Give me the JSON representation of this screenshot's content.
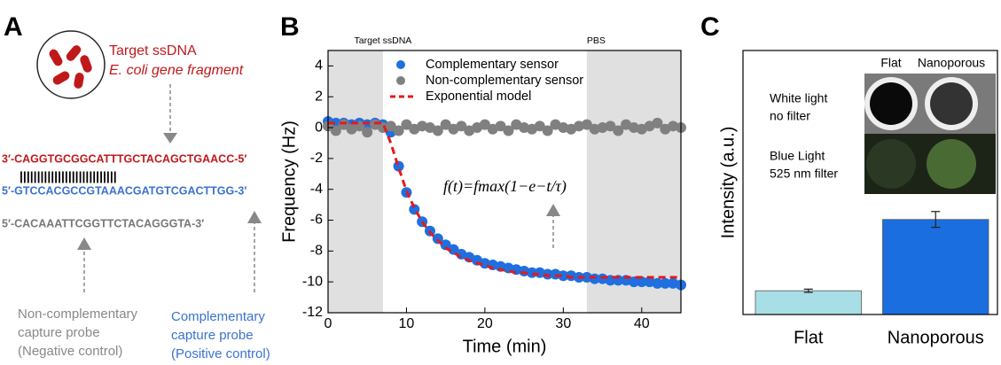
{
  "panel_a": {
    "label": "A",
    "target_title": "Target ssDNA",
    "target_sub": "E. coli gene fragment",
    "seq_target": "3′-CAGGTGCGGCATTTGCTACAGCTGAACC-5′",
    "pairs": "||||||||||||||||||||||||||||",
    "seq_comp": "5′-GTCCACGCCGTAAACGATGTCGACTTGG-3′",
    "seq_noncomp": "5′-CACAAATTCGGTTCTACAGGGTA-3′",
    "noncomp_label": [
      "Non-complementary",
      "capture probe",
      "(Negative control)"
    ],
    "comp_label": [
      "Complementary",
      "capture probe",
      "(Positive control)"
    ]
  },
  "chart_data": [
    {
      "type": "line",
      "panel": "B",
      "xlabel": "Time (min)",
      "ylabel": "Frequency (Hz)",
      "xlim": [
        0,
        45
      ],
      "xticks": [
        0,
        10,
        20,
        30,
        40
      ],
      "ylim": [
        -12,
        5
      ],
      "yticks": [
        -12,
        -10,
        -8,
        -6,
        -4,
        -2,
        0,
        2,
        4
      ],
      "shaded": [
        [
          0,
          7
        ],
        [
          33,
          45
        ]
      ],
      "annotations": [
        {
          "text": "Target ssDNA",
          "x": 7
        },
        {
          "text": "PBS",
          "x": 33
        }
      ],
      "formula": "f(t)=fmax(1−e−t/τ)",
      "x": [
        0,
        1,
        2,
        3,
        4,
        5,
        6,
        7,
        8,
        9,
        10,
        11,
        12,
        13,
        14,
        15,
        16,
        17,
        18,
        19,
        20,
        21,
        22,
        23,
        24,
        25,
        26,
        27,
        28,
        29,
        30,
        31,
        32,
        33,
        34,
        35,
        36,
        37,
        38,
        39,
        40,
        41,
        42,
        43,
        44,
        45
      ],
      "series": [
        {
          "name": "Complementary sensor",
          "color": "#1f6fe0",
          "style": "points",
          "values": [
            0.4,
            0.3,
            0.3,
            0.2,
            0.3,
            0.2,
            0.3,
            0.2,
            -0.3,
            -2.5,
            -4.2,
            -5.3,
            -6.1,
            -6.7,
            -7.2,
            -7.6,
            -7.9,
            -8.2,
            -8.4,
            -8.6,
            -8.8,
            -8.9,
            -9.0,
            -9.1,
            -9.2,
            -9.3,
            -9.4,
            -9.4,
            -9.5,
            -9.5,
            -9.6,
            -9.6,
            -9.7,
            -9.7,
            -9.8,
            -9.8,
            -9.9,
            -9.9,
            -9.9,
            -10.0,
            -10.0,
            -10.0,
            -10.1,
            -10.1,
            -10.1,
            -10.2
          ]
        },
        {
          "name": "Non-complementary sensor",
          "color": "#808080",
          "style": "points",
          "values": [
            0.1,
            -0.2,
            0.2,
            -0.1,
            0.1,
            -0.3,
            0.2,
            0,
            0.1,
            -0.2,
            0.2,
            -0.1,
            0.1,
            0,
            -0.2,
            0.2,
            -0.1,
            0.1,
            -0.2,
            0,
            0.2,
            -0.1,
            0.1,
            -0.2,
            0.2,
            0,
            -0.1,
            0.1,
            -0.2,
            0.2,
            0,
            -0.1,
            0.1,
            0.2,
            -0.1,
            0,
            0.1,
            -0.2,
            0.2,
            0,
            -0.1,
            0.1,
            0.3,
            -0.1,
            0.1,
            0
          ]
        },
        {
          "name": "Exponential model",
          "color": "#e31a1c",
          "style": "dashed",
          "values": [
            0.3,
            0.3,
            0.3,
            0.3,
            0.3,
            0.3,
            0.3,
            0.3,
            -1.0,
            -2.6,
            -4.1,
            -5.2,
            -6.1,
            -6.8,
            -7.3,
            -7.8,
            -8.1,
            -8.4,
            -8.6,
            -8.8,
            -8.9,
            -9.1,
            -9.2,
            -9.3,
            -9.4,
            -9.4,
            -9.5,
            -9.5,
            -9.6,
            -9.6,
            -9.6,
            -9.7,
            -9.7,
            -9.7,
            -9.7,
            -9.7,
            -9.7,
            -9.7,
            -9.7,
            -9.7,
            -9.7,
            -9.7,
            -9.7,
            -9.7,
            -9.7,
            -9.7
          ]
        }
      ]
    },
    {
      "type": "bar",
      "panel": "C",
      "ylabel": "Intensity (a.u.)",
      "ylim": [
        0,
        5
      ],
      "categories": [
        "Flat",
        "Nanoporous"
      ],
      "values": [
        0.45,
        1.8
      ],
      "errors": [
        0.03,
        0.15
      ],
      "colors": [
        "#a8dfe6",
        "#1a6ee0"
      ],
      "inset": {
        "columns": [
          "Flat",
          "Nanoporous"
        ],
        "rows": [
          [
            "White light",
            "no filter"
          ],
          [
            "Blue Light",
            "525 nm filter"
          ]
        ]
      }
    }
  ]
}
